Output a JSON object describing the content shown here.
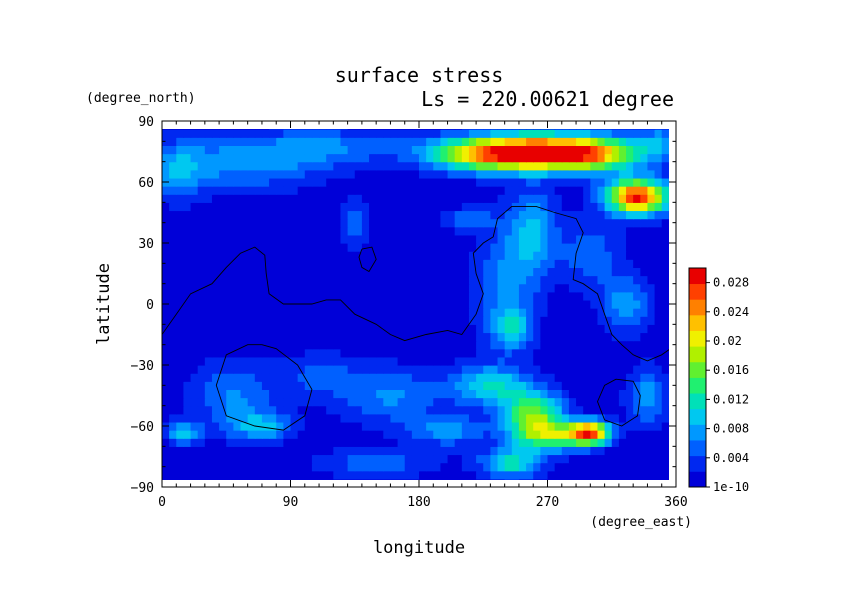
{
  "chart_data": {
    "type": "heatmap",
    "title": "surface stress",
    "subtitle": "Ls = 220.00621 degree",
    "xlabel": "longitude",
    "ylabel": "latitude",
    "x_unit": "(degree_east)",
    "y_unit": "(degree_north)",
    "xlim": [
      0,
      360
    ],
    "ylim": [
      -90,
      90
    ],
    "x_ticks": [
      0,
      90,
      180,
      270,
      360
    ],
    "y_ticks": [
      -90,
      -60,
      -30,
      0,
      30,
      60,
      90
    ],
    "colorbar": {
      "range": [
        1e-10,
        0.03
      ],
      "ticks": [
        {
          "value": 1e-10,
          "label": "1e-10"
        },
        {
          "value": 0.004,
          "label": "0.004"
        },
        {
          "value": 0.008,
          "label": "0.008"
        },
        {
          "value": 0.012,
          "label": "0.012"
        },
        {
          "value": 0.016,
          "label": "0.016"
        },
        {
          "value": 0.02,
          "label": "0.02"
        },
        {
          "value": 0.024,
          "label": "0.024"
        },
        {
          "value": 0.028,
          "label": "0.028"
        }
      ],
      "colors": [
        "#0000d8",
        "#0028f0",
        "#0060ff",
        "#0098ff",
        "#00c8f0",
        "#00e0b8",
        "#20f070",
        "#60f030",
        "#b0f000",
        "#f0f000",
        "#ffc000",
        "#ff8000",
        "#ff4000",
        "#e80000"
      ]
    },
    "hotspots": [
      {
        "lon": 270,
        "lat": 75,
        "value": 0.026,
        "sx": 35,
        "sy": 6
      },
      {
        "lon": 225,
        "lat": 74,
        "value": 0.015,
        "sx": 30,
        "sy": 6
      },
      {
        "lon": 305,
        "lat": 73,
        "value": 0.01,
        "sx": 22,
        "sy": 6
      },
      {
        "lon": 333,
        "lat": 53,
        "value": 0.028,
        "sx": 15,
        "sy": 6
      },
      {
        "lon": 60,
        "lat": 70,
        "value": 0.007,
        "sx": 40,
        "sy": 9
      },
      {
        "lon": 120,
        "lat": 78,
        "value": 0.005,
        "sx": 35,
        "sy": 6
      },
      {
        "lon": 10,
        "lat": 65,
        "value": 0.006,
        "sx": 15,
        "sy": 10
      },
      {
        "lon": 350,
        "lat": 80,
        "value": 0.006,
        "sx": 15,
        "sy": 6
      },
      {
        "lon": 260,
        "lat": 35,
        "value": 0.008,
        "sx": 12,
        "sy": 15
      },
      {
        "lon": 240,
        "lat": 10,
        "value": 0.006,
        "sx": 15,
        "sy": 20
      },
      {
        "lon": 245,
        "lat": -12,
        "value": 0.008,
        "sx": 10,
        "sy": 7
      },
      {
        "lon": 325,
        "lat": 0,
        "value": 0.007,
        "sx": 12,
        "sy": 10
      },
      {
        "lon": 300,
        "lat": 25,
        "value": 0.005,
        "sx": 15,
        "sy": 12
      },
      {
        "lon": 135,
        "lat": 40,
        "value": 0.006,
        "sx": 6,
        "sy": 8
      },
      {
        "lon": 215,
        "lat": 42,
        "value": 0.005,
        "sx": 12,
        "sy": 4
      },
      {
        "lon": 260,
        "lat": -55,
        "value": 0.016,
        "sx": 15,
        "sy": 8
      },
      {
        "lon": 300,
        "lat": -63,
        "value": 0.023,
        "sx": 10,
        "sy": 4
      },
      {
        "lon": 275,
        "lat": -65,
        "value": 0.013,
        "sx": 18,
        "sy": 5
      },
      {
        "lon": 230,
        "lat": -40,
        "value": 0.01,
        "sx": 20,
        "sy": 7
      },
      {
        "lon": 160,
        "lat": -45,
        "value": 0.006,
        "sx": 25,
        "sy": 10
      },
      {
        "lon": 50,
        "lat": -45,
        "value": 0.006,
        "sx": 20,
        "sy": 12
      },
      {
        "lon": 70,
        "lat": -60,
        "value": 0.008,
        "sx": 15,
        "sy": 5
      },
      {
        "lon": 15,
        "lat": -63,
        "value": 0.009,
        "sx": 8,
        "sy": 4
      },
      {
        "lon": 245,
        "lat": -78,
        "value": 0.011,
        "sx": 15,
        "sy": 5
      },
      {
        "lon": 200,
        "lat": -62,
        "value": 0.007,
        "sx": 18,
        "sy": 5
      },
      {
        "lon": 150,
        "lat": -78,
        "value": 0.005,
        "sx": 30,
        "sy": 5
      },
      {
        "lon": 340,
        "lat": -45,
        "value": 0.007,
        "sx": 10,
        "sy": 10
      },
      {
        "lon": 110,
        "lat": -35,
        "value": 0.004,
        "sx": 20,
        "sy": 8
      }
    ],
    "contours": [
      [
        [
          0,
          -15
        ],
        [
          10,
          -5
        ],
        [
          20,
          5
        ],
        [
          35,
          10
        ],
        [
          45,
          18
        ],
        [
          55,
          25
        ],
        [
          65,
          28
        ],
        [
          72,
          24
        ],
        [
          73,
          15
        ],
        [
          75,
          5
        ],
        [
          85,
          0
        ],
        [
          105,
          0
        ],
        [
          115,
          2
        ],
        [
          125,
          2
        ],
        [
          135,
          -5
        ],
        [
          150,
          -10
        ],
        [
          160,
          -15
        ],
        [
          170,
          -18
        ],
        [
          185,
          -15
        ],
        [
          200,
          -13
        ],
        [
          210,
          -15
        ],
        [
          220,
          -5
        ],
        [
          225,
          5
        ],
        [
          220,
          15
        ],
        [
          218,
          25
        ],
        [
          225,
          30
        ],
        [
          232,
          33
        ],
        [
          235,
          42
        ],
        [
          245,
          48
        ],
        [
          262,
          48
        ],
        [
          275,
          45
        ],
        [
          290,
          42
        ],
        [
          295,
          35
        ],
        [
          290,
          25
        ],
        [
          288,
          12
        ],
        [
          295,
          10
        ],
        [
          305,
          5
        ],
        [
          310,
          -5
        ],
        [
          315,
          -15
        ],
        [
          322,
          -20
        ],
        [
          330,
          -25
        ],
        [
          340,
          -28
        ],
        [
          350,
          -25
        ],
        [
          360,
          -20
        ]
      ],
      [
        [
          140,
          27
        ],
        [
          147,
          28
        ],
        [
          150,
          22
        ],
        [
          145,
          16
        ],
        [
          140,
          18
        ],
        [
          138,
          23
        ],
        [
          140,
          27
        ]
      ],
      [
        [
          70,
          -20
        ],
        [
          80,
          -22
        ],
        [
          95,
          -30
        ],
        [
          105,
          -42
        ],
        [
          100,
          -55
        ],
        [
          85,
          -62
        ],
        [
          65,
          -60
        ],
        [
          45,
          -55
        ],
        [
          38,
          -40
        ],
        [
          45,
          -25
        ],
        [
          60,
          -20
        ],
        [
          70,
          -20
        ]
      ],
      [
        [
          318,
          -37
        ],
        [
          330,
          -38
        ],
        [
          335,
          -45
        ],
        [
          333,
          -55
        ],
        [
          322,
          -60
        ],
        [
          310,
          -57
        ],
        [
          305,
          -48
        ],
        [
          310,
          -40
        ],
        [
          318,
          -37
        ]
      ]
    ]
  }
}
